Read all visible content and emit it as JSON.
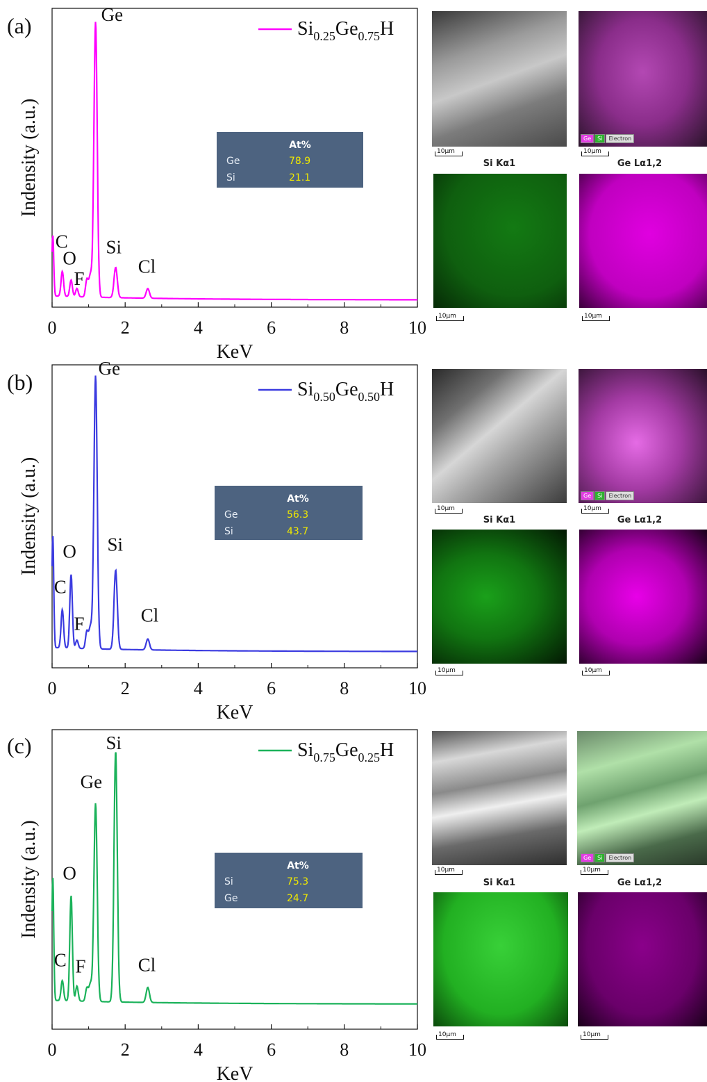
{
  "panels": [
    {
      "label": "(a)",
      "legend": {
        "main1": "Si",
        "sub1": "0.25",
        "main2": "Ge",
        "sub2": "0.75",
        "main3": "H"
      },
      "table": {
        "header": "At%",
        "rows": [
          [
            "Ge",
            "78.9"
          ],
          [
            "Si",
            "21.1"
          ]
        ]
      },
      "maps": {
        "si_title": "Si Kα1",
        "ge_title": "Ge Lα1,2",
        "scale": "10μm",
        "chip_ge": "Ge",
        "chip_si": "Si",
        "chip_e": "Electron"
      }
    },
    {
      "label": "(b)",
      "legend": {
        "main1": "Si",
        "sub1": "0.50",
        "main2": "Ge",
        "sub2": "0.50",
        "main3": "H"
      },
      "table": {
        "header": "At%",
        "rows": [
          [
            "Ge",
            "56.3"
          ],
          [
            "Si",
            "43.7"
          ]
        ]
      },
      "maps": {
        "si_title": "Si Kα1",
        "ge_title": "Ge Lα1,2",
        "scale": "10μm",
        "chip_ge": "Ge",
        "chip_si": "Si",
        "chip_e": "Electron"
      }
    },
    {
      "label": "(c)",
      "legend": {
        "main1": "Si",
        "sub1": "0.75",
        "main2": "Ge",
        "sub2": "0.25",
        "main3": "H"
      },
      "table": {
        "header": "At%",
        "rows": [
          [
            "Si",
            "75.3"
          ],
          [
            "Ge",
            "24.7"
          ]
        ]
      },
      "maps": {
        "si_title": "Si Kα1",
        "ge_title": "Ge Lα1,2",
        "scale": "10μm",
        "chip_ge": "Ge",
        "chip_si": "Si",
        "chip_e": "Electron"
      }
    }
  ],
  "chart_data": [
    {
      "type": "line",
      "panel": "(a)",
      "xlabel": "KeV",
      "ylabel": "Indensity (a.u.)",
      "xlim": [
        0,
        10
      ],
      "ylim": [
        0,
        100
      ],
      "xticks": [
        0,
        2,
        4,
        6,
        8,
        10
      ],
      "series": [
        {
          "name": "Si0.25Ge0.75H",
          "color": "#ff00ff",
          "peaks": [
            [
              0.02,
              22
            ],
            [
              0.28,
              9
            ],
            [
              0.52,
              6
            ],
            [
              0.68,
              3
            ],
            [
              0.95,
              6
            ],
            [
              1.05,
              8
            ],
            [
              1.19,
              100
            ],
            [
              1.74,
              11
            ],
            [
              2.62,
              3.5
            ]
          ]
        }
      ],
      "annotations": [
        {
          "text": "Ge",
          "x": 1.19,
          "y": 100
        },
        {
          "text": "C",
          "x": 0.28,
          "y": 18
        },
        {
          "text": "O",
          "x": 0.52,
          "y": 12
        },
        {
          "text": "F",
          "x": 0.75,
          "y": 6
        },
        {
          "text": "Si",
          "x": 1.74,
          "y": 15
        },
        {
          "text": "Cl",
          "x": 2.62,
          "y": 8
        }
      ]
    },
    {
      "type": "line",
      "panel": "(b)",
      "xlabel": "KeV",
      "ylabel": "Indensity (a.u.)",
      "xlim": [
        0,
        10
      ],
      "ylim": [
        0,
        100
      ],
      "xticks": [
        0,
        2,
        4,
        6,
        8,
        10
      ],
      "series": [
        {
          "name": "Si0.50Ge0.50H",
          "color": "#3b3be0",
          "peaks": [
            [
              0.02,
              41
            ],
            [
              0.28,
              14
            ],
            [
              0.52,
              27
            ],
            [
              0.68,
              3
            ],
            [
              0.95,
              6
            ],
            [
              1.05,
              8
            ],
            [
              1.19,
              100
            ],
            [
              1.74,
              29
            ],
            [
              2.62,
              4
            ]
          ]
        }
      ],
      "annotations": [
        {
          "text": "Ge",
          "x": 1.19,
          "y": 100
        },
        {
          "text": "O",
          "x": 0.52,
          "y": 33
        },
        {
          "text": "C",
          "x": 0.28,
          "y": 20
        },
        {
          "text": "F",
          "x": 0.75,
          "y": 8
        },
        {
          "text": "Si",
          "x": 1.74,
          "y": 35
        },
        {
          "text": "Cl",
          "x": 2.62,
          "y": 9
        }
      ]
    },
    {
      "type": "line",
      "panel": "(c)",
      "xlabel": "KeV",
      "ylabel": "Indensity (a.u.)",
      "xlim": [
        0,
        10
      ],
      "ylim": [
        0,
        100
      ],
      "xticks": [
        0,
        2,
        4,
        6,
        8,
        10
      ],
      "series": [
        {
          "name": "Si0.75Ge0.25H",
          "color": "#1bb25a",
          "peaks": [
            [
              0.02,
              49
            ],
            [
              0.28,
              8
            ],
            [
              0.52,
              42
            ],
            [
              0.68,
              6
            ],
            [
              0.95,
              5
            ],
            [
              1.05,
              7
            ],
            [
              1.19,
              79
            ],
            [
              1.74,
              100
            ],
            [
              2.62,
              6
            ]
          ]
        }
      ],
      "annotations": [
        {
          "text": "Si",
          "x": 1.74,
          "y": 100
        },
        {
          "text": "Ge",
          "x": 1.19,
          "y": 84
        },
        {
          "text": "O",
          "x": 0.52,
          "y": 48
        },
        {
          "text": "C",
          "x": 0.28,
          "y": 14
        },
        {
          "text": "F",
          "x": 0.75,
          "y": 12
        },
        {
          "text": "Cl",
          "x": 2.62,
          "y": 11
        }
      ]
    }
  ]
}
